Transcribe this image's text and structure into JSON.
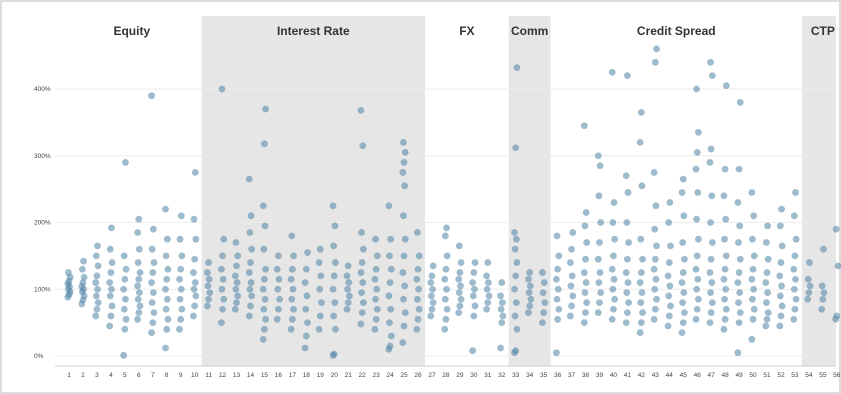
{
  "chart_data": {
    "type": "scatter",
    "title": "",
    "xlabel": "",
    "ylabel": "",
    "ylim": [
      0,
      450
    ],
    "grid": true,
    "point_color": "#4f83a6",
    "band_color": "#e6e6e6",
    "y_ticks": [
      {
        "value": 0,
        "label": "0%"
      },
      {
        "value": 100,
        "label": "100%"
      },
      {
        "value": 200,
        "label": "200%"
      },
      {
        "value": 300,
        "label": "300%"
      },
      {
        "value": 400,
        "label": "400%"
      }
    ],
    "x_categories": [
      "1",
      "2",
      "3",
      "4",
      "5",
      "6",
      "7",
      "8",
      "9",
      "10",
      "11",
      "12",
      "13",
      "14",
      "15",
      "16",
      "17",
      "18",
      "19",
      "20",
      "21",
      "22",
      "23",
      "24",
      "25",
      "26",
      "27",
      "28",
      "29",
      "30",
      "31",
      "32",
      "33",
      "34",
      "35",
      "36",
      "37",
      "38",
      "39",
      "40",
      "41",
      "42",
      "43",
      "44",
      "45",
      "46",
      "47",
      "48",
      "49",
      "50",
      "51",
      "52",
      "53",
      "54",
      "55",
      "56"
    ],
    "groups": [
      {
        "label": "Equity",
        "from": 1,
        "to": 10,
        "shaded": false
      },
      {
        "label": "Interest Rate",
        "from": 11,
        "to": 26,
        "shaded": true
      },
      {
        "label": "FX",
        "from": 27,
        "to": 32,
        "shaded": false
      },
      {
        "label": "Comm",
        "from": 33,
        "to": 35,
        "shaded": true
      },
      {
        "label": "Credit Spread",
        "from": 36,
        "to": 53,
        "shaded": false
      },
      {
        "label": "CTP",
        "from": 54,
        "to": 56,
        "shaded": true
      }
    ],
    "series": [
      {
        "x": 1,
        "values": [
          88,
          92,
          96,
          100,
          104,
          108,
          112,
          118,
          125
        ]
      },
      {
        "x": 2,
        "values": [
          78,
          84,
          90,
          96,
          100,
          104,
          110,
          118,
          130,
          142
        ]
      },
      {
        "x": 3,
        "values": [
          60,
          70,
          80,
          90,
          100,
          110,
          120,
          135,
          150,
          165
        ]
      },
      {
        "x": 4,
        "values": [
          45,
          60,
          75,
          90,
          100,
          110,
          125,
          140,
          160,
          192
        ]
      },
      {
        "x": 5,
        "values": [
          1,
          40,
          55,
          70,
          85,
          100,
          115,
          130,
          150,
          290
        ]
      },
      {
        "x": 6,
        "values": [
          55,
          65,
          75,
          85,
          95,
          105,
          115,
          125,
          140,
          160,
          185,
          205
        ]
      },
      {
        "x": 7,
        "values": [
          35,
          50,
          65,
          80,
          95,
          110,
          125,
          140,
          160,
          190,
          390
        ]
      },
      {
        "x": 8,
        "values": [
          12,
          40,
          55,
          70,
          85,
          100,
          115,
          130,
          150,
          175,
          220
        ]
      },
      {
        "x": 9,
        "values": [
          40,
          55,
          70,
          85,
          100,
          115,
          130,
          150,
          175,
          210
        ]
      },
      {
        "x": 10,
        "values": [
          60,
          75,
          90,
          100,
          110,
          125,
          145,
          175,
          205,
          275
        ]
      },
      {
        "x": 11,
        "values": [
          75,
          85,
          95,
          105,
          115,
          125,
          140
        ]
      },
      {
        "x": 12,
        "values": [
          50,
          70,
          85,
          100,
          115,
          130,
          150,
          175,
          400
        ]
      },
      {
        "x": 13,
        "values": [
          70,
          80,
          90,
          100,
          110,
          120,
          135,
          150,
          170
        ]
      },
      {
        "x": 14,
        "values": [
          60,
          75,
          90,
          100,
          110,
          125,
          140,
          160,
          185,
          210,
          265
        ]
      },
      {
        "x": 15,
        "values": [
          25,
          40,
          55,
          70,
          85,
          100,
          115,
          130,
          160,
          195,
          225,
          318,
          370
        ]
      },
      {
        "x": 16,
        "values": [
          55,
          70,
          85,
          100,
          115,
          130,
          150
        ]
      },
      {
        "x": 17,
        "values": [
          40,
          55,
          70,
          85,
          100,
          115,
          130,
          150,
          180
        ]
      },
      {
        "x": 18,
        "values": [
          12,
          30,
          50,
          70,
          90,
          110,
          130,
          155
        ]
      },
      {
        "x": 19,
        "values": [
          40,
          60,
          80,
          100,
          120,
          140,
          160
        ]
      },
      {
        "x": 20,
        "values": [
          1,
          3,
          40,
          60,
          80,
          100,
          120,
          140,
          165,
          195,
          225
        ]
      },
      {
        "x": 21,
        "values": [
          70,
          80,
          90,
          100,
          110,
          120,
          135
        ]
      },
      {
        "x": 22,
        "values": [
          48,
          65,
          80,
          95,
          110,
          125,
          140,
          160,
          185,
          315,
          368
        ]
      },
      {
        "x": 23,
        "values": [
          40,
          55,
          70,
          85,
          100,
          115,
          130,
          150,
          175
        ]
      },
      {
        "x": 24,
        "values": [
          10,
          15,
          30,
          50,
          70,
          90,
          110,
          130,
          150,
          175,
          225
        ]
      },
      {
        "x": 25,
        "values": [
          20,
          45,
          65,
          85,
          105,
          125,
          150,
          175,
          210,
          255,
          275,
          290,
          305,
          320
        ]
      },
      {
        "x": 26,
        "values": [
          40,
          55,
          70,
          85,
          100,
          115,
          130,
          150,
          185
        ]
      },
      {
        "x": 27,
        "values": [
          60,
          70,
          80,
          90,
          100,
          110,
          120,
          135
        ]
      },
      {
        "x": 28,
        "values": [
          40,
          55,
          70,
          85,
          100,
          115,
          130,
          150,
          180,
          192
        ]
      },
      {
        "x": 29,
        "values": [
          65,
          75,
          85,
          95,
          105,
          115,
          125,
          140,
          165
        ]
      },
      {
        "x": 30,
        "values": [
          8,
          60,
          75,
          90,
          100,
          110,
          125,
          140
        ]
      },
      {
        "x": 31,
        "values": [
          70,
          80,
          90,
          100,
          110,
          120,
          140
        ]
      },
      {
        "x": 32,
        "values": [
          12,
          50,
          60,
          70,
          80,
          90,
          110
        ]
      },
      {
        "x": 33,
        "values": [
          5,
          8,
          40,
          60,
          80,
          100,
          120,
          140,
          160,
          175,
          185,
          312,
          432
        ]
      },
      {
        "x": 34,
        "values": [
          65,
          75,
          85,
          95,
          105,
          115,
          125
        ]
      },
      {
        "x": 35,
        "values": [
          50,
          65,
          80,
          95,
          110,
          125
        ]
      },
      {
        "x": 36,
        "values": [
          5,
          55,
          70,
          85,
          100,
          115,
          130,
          150,
          180
        ]
      },
      {
        "x": 37,
        "values": [
          60,
          75,
          90,
          105,
          120,
          140,
          160,
          185
        ]
      },
      {
        "x": 38,
        "values": [
          50,
          65,
          80,
          95,
          110,
          125,
          145,
          170,
          195,
          215,
          345
        ]
      },
      {
        "x": 39,
        "values": [
          65,
          80,
          95,
          110,
          125,
          145,
          170,
          200,
          240,
          285,
          300
        ]
      },
      {
        "x": 40,
        "values": [
          55,
          70,
          85,
          100,
          115,
          130,
          150,
          175,
          200,
          230,
          425
        ]
      },
      {
        "x": 41,
        "values": [
          50,
          65,
          80,
          95,
          110,
          125,
          145,
          170,
          200,
          245,
          270,
          420
        ]
      },
      {
        "x": 42,
        "values": [
          35,
          50,
          65,
          80,
          95,
          110,
          125,
          145,
          175,
          255,
          320,
          365
        ]
      },
      {
        "x": 43,
        "values": [
          55,
          70,
          85,
          100,
          115,
          130,
          145,
          165,
          190,
          225,
          275,
          440,
          460
        ]
      },
      {
        "x": 44,
        "values": [
          45,
          60,
          75,
          90,
          105,
          120,
          140,
          165,
          200,
          230
        ]
      },
      {
        "x": 45,
        "values": [
          35,
          50,
          65,
          80,
          95,
          110,
          125,
          145,
          170,
          210,
          245,
          265
        ]
      },
      {
        "x": 46,
        "values": [
          55,
          70,
          85,
          100,
          115,
          130,
          150,
          175,
          205,
          245,
          280,
          305,
          335,
          400
        ]
      },
      {
        "x": 47,
        "values": [
          50,
          65,
          80,
          95,
          110,
          125,
          145,
          170,
          200,
          240,
          290,
          310,
          420,
          440
        ]
      },
      {
        "x": 48,
        "values": [
          40,
          55,
          70,
          85,
          100,
          115,
          130,
          150,
          175,
          205,
          240,
          280,
          405
        ]
      },
      {
        "x": 49,
        "values": [
          5,
          50,
          65,
          80,
          95,
          110,
          125,
          145,
          170,
          195,
          230,
          280,
          380
        ]
      },
      {
        "x": 50,
        "values": [
          25,
          55,
          70,
          85,
          100,
          115,
          130,
          150,
          175,
          210,
          245
        ]
      },
      {
        "x": 51,
        "values": [
          45,
          55,
          65,
          80,
          95,
          110,
          125,
          145,
          170,
          195
        ]
      },
      {
        "x": 52,
        "values": [
          45,
          60,
          75,
          90,
          105,
          120,
          140,
          165,
          195,
          220
        ]
      },
      {
        "x": 53,
        "values": [
          55,
          70,
          85,
          100,
          115,
          130,
          150,
          175,
          210,
          245
        ]
      },
      {
        "x": 54,
        "values": [
          85,
          95,
          105,
          115,
          140
        ]
      },
      {
        "x": 55,
        "values": [
          70,
          85,
          95,
          105,
          160
        ]
      },
      {
        "x": 56,
        "values": [
          55,
          60,
          135,
          190
        ]
      }
    ]
  }
}
